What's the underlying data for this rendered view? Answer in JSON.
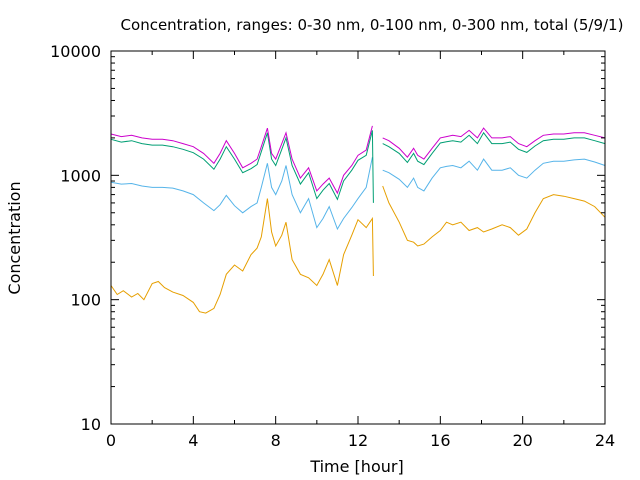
{
  "chart_data": {
    "type": "line",
    "title": "Concentration, ranges: 0-30 nm, 0-100 nm, 0-300 nm, total (5/9/1)",
    "xlabel": "Time [hour]",
    "ylabel": "Concentration",
    "xlim": [
      0,
      24
    ],
    "ylim": [
      10,
      10000
    ],
    "yscale": "log",
    "xticks": [
      "0",
      "4",
      "8",
      "12",
      "16",
      "20",
      "24"
    ],
    "yticks": [
      "10",
      "100",
      "1000",
      "10000"
    ],
    "grid": false,
    "legend": "none",
    "series": [
      {
        "range": "total",
        "color": "#cc00cc",
        "segments": [
          [
            [
              0,
              2150
            ],
            [
              0.5,
              2050
            ],
            [
              1,
              2100
            ],
            [
              1.5,
              2000
            ],
            [
              2,
              1950
            ],
            [
              2.5,
              1950
            ],
            [
              3,
              1900
            ],
            [
              3.5,
              1800
            ],
            [
              4,
              1700
            ],
            [
              4.5,
              1500
            ],
            [
              5,
              1250
            ],
            [
              5.3,
              1500
            ],
            [
              5.6,
              1900
            ],
            [
              6,
              1500
            ],
            [
              6.4,
              1150
            ],
            [
              6.8,
              1250
            ],
            [
              7.1,
              1350
            ],
            [
              7.3,
              1700
            ],
            [
              7.6,
              2400
            ],
            [
              7.8,
              1500
            ],
            [
              8,
              1350
            ],
            [
              8.3,
              1800
            ],
            [
              8.5,
              2200
            ],
            [
              8.8,
              1350
            ],
            [
              9.2,
              950
            ],
            [
              9.6,
              1150
            ],
            [
              10,
              750
            ],
            [
              10.3,
              850
            ],
            [
              10.6,
              950
            ],
            [
              11,
              720
            ],
            [
              11.3,
              1000
            ],
            [
              11.7,
              1200
            ],
            [
              12,
              1450
            ],
            [
              12.4,
              1600
            ],
            [
              12.7,
              2500
            ]
          ],
          [
            [
              13.2,
              2000
            ],
            [
              13.5,
              1900
            ],
            [
              14,
              1650
            ],
            [
              14.4,
              1400
            ],
            [
              14.7,
              1650
            ],
            [
              14.9,
              1450
            ],
            [
              15.2,
              1350
            ],
            [
              15.6,
              1650
            ],
            [
              16,
              2000
            ],
            [
              16.3,
              2050
            ],
            [
              16.6,
              2100
            ],
            [
              17,
              2050
            ],
            [
              17.4,
              2300
            ],
            [
              17.8,
              2000
            ],
            [
              18.1,
              2400
            ],
            [
              18.5,
              2000
            ],
            [
              19,
              2000
            ],
            [
              19.4,
              2050
            ],
            [
              19.8,
              1800
            ],
            [
              20.2,
              1700
            ],
            [
              20.6,
              1900
            ],
            [
              21,
              2100
            ],
            [
              21.5,
              2150
            ],
            [
              22,
              2150
            ],
            [
              22.5,
              2200
            ],
            [
              23,
              2200
            ],
            [
              23.5,
              2100
            ],
            [
              24,
              2000
            ]
          ]
        ]
      },
      {
        "range": "0-300 nm",
        "color": "#009e73",
        "segments": [
          [
            [
              0,
              1950
            ],
            [
              0.5,
              1850
            ],
            [
              1,
              1900
            ],
            [
              1.5,
              1800
            ],
            [
              2,
              1750
            ],
            [
              2.5,
              1750
            ],
            [
              3,
              1700
            ],
            [
              3.5,
              1620
            ],
            [
              4,
              1520
            ],
            [
              4.5,
              1350
            ],
            [
              5,
              1120
            ],
            [
              5.3,
              1350
            ],
            [
              5.6,
              1700
            ],
            [
              6,
              1350
            ],
            [
              6.4,
              1050
            ],
            [
              6.8,
              1130
            ],
            [
              7.1,
              1220
            ],
            [
              7.3,
              1550
            ],
            [
              7.6,
              2200
            ],
            [
              7.8,
              1350
            ],
            [
              8,
              1200
            ],
            [
              8.3,
              1620
            ],
            [
              8.5,
              2000
            ],
            [
              8.8,
              1200
            ],
            [
              9.2,
              850
            ],
            [
              9.6,
              1050
            ],
            [
              10,
              650
            ],
            [
              10.3,
              760
            ],
            [
              10.6,
              860
            ],
            [
              11,
              640
            ],
            [
              11.3,
              900
            ],
            [
              11.7,
              1100
            ],
            [
              12,
              1320
            ],
            [
              12.4,
              1450
            ],
            [
              12.7,
              2300
            ],
            [
              12.75,
              600
            ]
          ],
          [
            [
              13.2,
              1800
            ],
            [
              13.5,
              1700
            ],
            [
              14,
              1500
            ],
            [
              14.4,
              1270
            ],
            [
              14.7,
              1500
            ],
            [
              14.9,
              1300
            ],
            [
              15.2,
              1220
            ],
            [
              15.6,
              1500
            ],
            [
              16,
              1820
            ],
            [
              16.3,
              1860
            ],
            [
              16.6,
              1900
            ],
            [
              17,
              1850
            ],
            [
              17.4,
              2100
            ],
            [
              17.8,
              1800
            ],
            [
              18.1,
              2200
            ],
            [
              18.5,
              1800
            ],
            [
              19,
              1800
            ],
            [
              19.4,
              1850
            ],
            [
              19.8,
              1620
            ],
            [
              20.2,
              1530
            ],
            [
              20.6,
              1720
            ],
            [
              21,
              1900
            ],
            [
              21.5,
              1950
            ],
            [
              22,
              1950
            ],
            [
              22.5,
              2000
            ],
            [
              23,
              2000
            ],
            [
              23.5,
              1900
            ],
            [
              24,
              1800
            ]
          ]
        ]
      },
      {
        "range": "0-100 nm",
        "color": "#56b4e9",
        "segments": [
          [
            [
              0,
              880
            ],
            [
              0.5,
              850
            ],
            [
              1,
              860
            ],
            [
              1.5,
              820
            ],
            [
              2,
              800
            ],
            [
              2.5,
              800
            ],
            [
              3,
              790
            ],
            [
              3.5,
              750
            ],
            [
              4,
              700
            ],
            [
              4.5,
              600
            ],
            [
              5,
              520
            ],
            [
              5.3,
              580
            ],
            [
              5.6,
              690
            ],
            [
              6,
              570
            ],
            [
              6.4,
              500
            ],
            [
              6.8,
              560
            ],
            [
              7.1,
              600
            ],
            [
              7.3,
              800
            ],
            [
              7.6,
              1250
            ],
            [
              7.8,
              800
            ],
            [
              8,
              700
            ],
            [
              8.3,
              900
            ],
            [
              8.5,
              1200
            ],
            [
              8.8,
              700
            ],
            [
              9.2,
              500
            ],
            [
              9.6,
              650
            ],
            [
              10,
              380
            ],
            [
              10.3,
              450
            ],
            [
              10.6,
              560
            ],
            [
              11,
              370
            ],
            [
              11.3,
              450
            ],
            [
              11.7,
              550
            ],
            [
              12,
              650
            ],
            [
              12.4,
              800
            ],
            [
              12.7,
              1400
            ]
          ],
          [
            [
              13.2,
              1100
            ],
            [
              13.5,
              1050
            ],
            [
              14,
              930
            ],
            [
              14.4,
              800
            ],
            [
              14.7,
              950
            ],
            [
              14.9,
              800
            ],
            [
              15.2,
              750
            ],
            [
              15.6,
              950
            ],
            [
              16,
              1150
            ],
            [
              16.3,
              1180
            ],
            [
              16.6,
              1200
            ],
            [
              17,
              1150
            ],
            [
              17.4,
              1300
            ],
            [
              17.8,
              1100
            ],
            [
              18.1,
              1350
            ],
            [
              18.5,
              1100
            ],
            [
              19,
              1100
            ],
            [
              19.4,
              1150
            ],
            [
              19.8,
              1000
            ],
            [
              20.2,
              950
            ],
            [
              20.6,
              1100
            ],
            [
              21,
              1250
            ],
            [
              21.5,
              1300
            ],
            [
              22,
              1300
            ],
            [
              22.5,
              1330
            ],
            [
              23,
              1350
            ],
            [
              23.5,
              1280
            ],
            [
              24,
              1200
            ]
          ]
        ]
      },
      {
        "range": "0-30 nm",
        "color": "#e69f00",
        "segments": [
          [
            [
              0,
              130
            ],
            [
              0.3,
              110
            ],
            [
              0.6,
              118
            ],
            [
              1,
              105
            ],
            [
              1.3,
              112
            ],
            [
              1.6,
              100
            ],
            [
              2,
              135
            ],
            [
              2.3,
              140
            ],
            [
              2.6,
              125
            ],
            [
              3,
              115
            ],
            [
              3.5,
              108
            ],
            [
              4,
              95
            ],
            [
              4.3,
              80
            ],
            [
              4.6,
              78
            ],
            [
              5,
              85
            ],
            [
              5.3,
              110
            ],
            [
              5.6,
              160
            ],
            [
              6,
              190
            ],
            [
              6.4,
              170
            ],
            [
              6.8,
              230
            ],
            [
              7.1,
              260
            ],
            [
              7.3,
              320
            ],
            [
              7.6,
              650
            ],
            [
              7.8,
              350
            ],
            [
              8,
              270
            ],
            [
              8.3,
              330
            ],
            [
              8.5,
              420
            ],
            [
              8.8,
              210
            ],
            [
              9.2,
              160
            ],
            [
              9.6,
              150
            ],
            [
              10,
              130
            ],
            [
              10.3,
              160
            ],
            [
              10.6,
              210
            ],
            [
              11,
              130
            ],
            [
              11.3,
              230
            ],
            [
              11.7,
              330
            ],
            [
              12,
              440
            ],
            [
              12.4,
              380
            ],
            [
              12.7,
              450
            ],
            [
              12.75,
              155
            ]
          ],
          [
            [
              13.2,
              820
            ],
            [
              13.5,
              600
            ],
            [
              14,
              420
            ],
            [
              14.4,
              300
            ],
            [
              14.7,
              290
            ],
            [
              14.9,
              270
            ],
            [
              15.2,
              280
            ],
            [
              15.6,
              320
            ],
            [
              16,
              360
            ],
            [
              16.3,
              420
            ],
            [
              16.6,
              400
            ],
            [
              17,
              420
            ],
            [
              17.4,
              360
            ],
            [
              17.8,
              380
            ],
            [
              18.1,
              350
            ],
            [
              18.5,
              370
            ],
            [
              19,
              400
            ],
            [
              19.4,
              380
            ],
            [
              19.8,
              330
            ],
            [
              20.2,
              370
            ],
            [
              20.6,
              500
            ],
            [
              21,
              650
            ],
            [
              21.5,
              700
            ],
            [
              22,
              680
            ],
            [
              22.5,
              650
            ],
            [
              23,
              620
            ],
            [
              23.5,
              560
            ],
            [
              24,
              460
            ]
          ]
        ]
      }
    ]
  }
}
